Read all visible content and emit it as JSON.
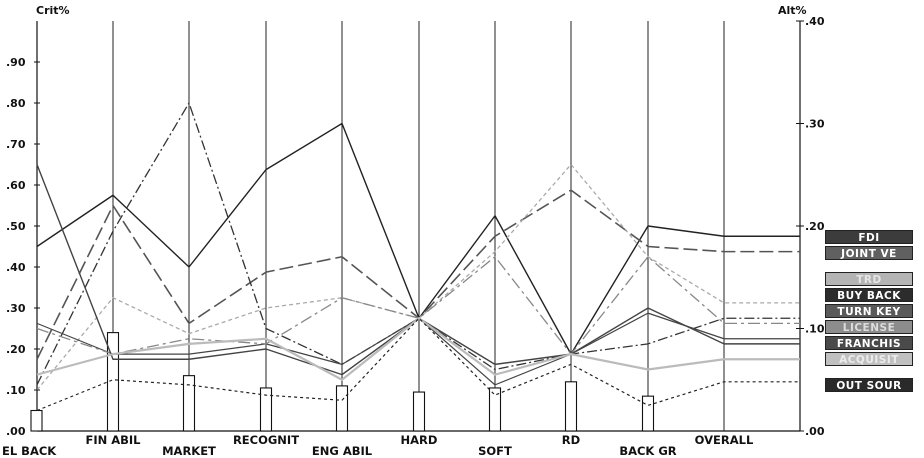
{
  "chart_data": {
    "type": "line",
    "left_axis_label": "Crit%",
    "right_axis_label": "Alt%",
    "left_ticks": [
      ".00",
      ".10",
      ".20",
      ".30",
      ".40",
      ".50",
      ".60",
      ".70",
      ".80",
      ".90"
    ],
    "right_ticks": [
      ".00",
      ".10",
      ".20",
      ".30",
      ".40"
    ],
    "ylim_left": [
      0,
      1.0
    ],
    "ylim_right": [
      0,
      0.4
    ],
    "categories": [
      "EL BACK",
      "FIN ABIL",
      "MARKET",
      "RECOGNIT",
      "ENG ABIL",
      "HARD",
      "SOFT",
      "RD",
      "BACK GR",
      "OVERALL"
    ],
    "criteria_weights": [
      0.05,
      0.24,
      0.135,
      0.105,
      0.11,
      0.095,
      0.105,
      0.12,
      0.085,
      0
    ],
    "series": [
      {
        "name": "FDI",
        "values": [
          0.18,
          0.23,
          0.16,
          0.255,
          0.3,
          0.11,
          0.21,
          0.075,
          0.2,
          0.19
        ],
        "color": "#222222",
        "dash": "",
        "width": 1.4
      },
      {
        "name": "JOINT VE",
        "values": [
          0.07,
          0.22,
          0.105,
          0.155,
          0.17,
          0.11,
          0.19,
          0.235,
          0.18,
          0.175
        ],
        "color": "#555555",
        "dash": "14 5",
        "width": 1.6
      },
      {
        "name": "TRD",
        "values": [
          0.04,
          0.13,
          0.095,
          0.12,
          0.13,
          0.11,
          0.175,
          0.26,
          0.17,
          0.125
        ],
        "color": "#aaaaaa",
        "dash": "4 3",
        "width": 1.3
      },
      {
        "name": "BUY BACK",
        "values": [
          0.045,
          0.195,
          0.32,
          0.1,
          0.065,
          0.11,
          0.06,
          0.075,
          0.085,
          0.11
        ],
        "color": "#333333",
        "dash": "10 3 2 3",
        "width": 1.3
      },
      {
        "name": "TURN KEY",
        "values": [
          0.105,
          0.075,
          0.075,
          0.085,
          0.065,
          0.11,
          0.045,
          0.075,
          0.115,
          0.09
        ],
        "color": "#444444",
        "dash": "",
        "width": 1.2
      },
      {
        "name": "LICENSE",
        "values": [
          0.1,
          0.075,
          0.09,
          0.085,
          0.13,
          0.11,
          0.17,
          0.075,
          0.17,
          0.105
        ],
        "color": "#888888",
        "dash": "12 4 3 4",
        "width": 1.3
      },
      {
        "name": "FRANCHIS",
        "values": [
          0.26,
          0.07,
          0.07,
          0.08,
          0.055,
          0.11,
          0.065,
          0.075,
          0.12,
          0.085
        ],
        "color": "#444444",
        "dash": "",
        "width": 1.4
      },
      {
        "name": "ACQUISIT",
        "values": [
          0.055,
          0.075,
          0.085,
          0.09,
          0.05,
          0.11,
          0.055,
          0.075,
          0.06,
          0.07
        ],
        "color": "#bbbbbb",
        "dash": "",
        "width": 2.2
      },
      {
        "name": "OUT SOUR",
        "values": [
          0.02,
          0.05,
          0.045,
          0.035,
          0.03,
          0.11,
          0.035,
          0.065,
          0.025,
          0.048
        ],
        "color": "#222222",
        "dash": "3 3",
        "width": 1.2
      }
    ],
    "legend": [
      {
        "name": "FDI",
        "bg": "#3c3c3c",
        "fg": "#ffffff",
        "gap_before": false
      },
      {
        "name": "JOINT VE",
        "bg": "#606060",
        "fg": "#ffffff",
        "gap_before": false
      },
      {
        "name": "TRD",
        "bg": "#b4b4b4",
        "fg": "#e6e6e6",
        "gap_before": true
      },
      {
        "name": "BUY BACK",
        "bg": "#2c2c2c",
        "fg": "#ffffff",
        "gap_before": false
      },
      {
        "name": "TURN KEY",
        "bg": "#5a5a5a",
        "fg": "#ffffff",
        "gap_before": false
      },
      {
        "name": "LICENSE",
        "bg": "#8c8c8c",
        "fg": "#dcdcdc",
        "gap_before": false
      },
      {
        "name": "FRANCHIS",
        "bg": "#4a4a4a",
        "fg": "#ffffff",
        "gap_before": false
      },
      {
        "name": "ACQUISIT",
        "bg": "#c0c0c0",
        "fg": "#ececec",
        "gap_before": false
      },
      {
        "name": "OUT SOUR",
        "bg": "#2a2a2a",
        "fg": "#ffffff",
        "gap_before": true
      }
    ]
  }
}
